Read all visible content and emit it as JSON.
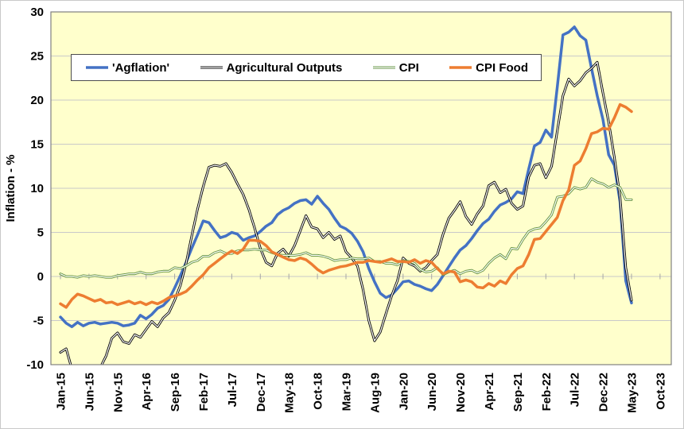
{
  "chart_data": {
    "type": "line",
    "title": "",
    "ylabel": "Inflation - %",
    "ylim": [
      -10,
      30
    ],
    "ytick_step": 5,
    "ytick_labels": [
      "30",
      "25",
      "20",
      "15",
      "10",
      "5",
      "0",
      "-5",
      "-10"
    ],
    "grid": true,
    "legend_position": "top",
    "plot_bg": "#FFFFCC",
    "grid_color": "#C9C9C9",
    "border_color": "#808080",
    "tick_color": "#A6A6A6",
    "x_start": "Jan-15",
    "x_frequency": "monthly",
    "x_tick_every_months": 5,
    "x_tick_labels": [
      "Jan-15",
      "Jun-15",
      "Nov-15",
      "Apr-16",
      "Sep-16",
      "Feb-17",
      "Jul-17",
      "Dec-17",
      "May-18",
      "Oct-18",
      "Mar-19",
      "Aug-19",
      "Jan-20",
      "Jun-20",
      "Nov-20",
      "Apr-21",
      "Sep-21",
      "Feb-22",
      "Jul-22",
      "Dec-22",
      "May-23",
      "Oct-23"
    ],
    "series": [
      {
        "name": "'Agflation'",
        "color": "#4472C4",
        "style": "solid",
        "values": [
          -4.6,
          -5.3,
          -5.7,
          -5.2,
          -5.6,
          -5.3,
          -5.2,
          -5.4,
          -5.3,
          -5.2,
          -5.3,
          -5.6,
          -5.5,
          -5.3,
          -4.4,
          -4.8,
          -4.3,
          -3.6,
          -3.3,
          -2.6,
          -1.3,
          0.1,
          1.6,
          3.2,
          4.7,
          6.3,
          6.1,
          5.2,
          4.4,
          4.6,
          5.0,
          4.8,
          4.1,
          4.4,
          4.6,
          5.1,
          5.7,
          6.1,
          7.0,
          7.5,
          7.8,
          8.3,
          8.6,
          8.7,
          8.2,
          9.1,
          8.3,
          7.6,
          6.6,
          5.7,
          5.4,
          4.9,
          4.0,
          2.8,
          0.9,
          -0.6,
          -1.9,
          -2.4,
          -2.1,
          -1.4,
          -0.6,
          -0.5,
          -0.9,
          -1.1,
          -1.4,
          -1.6,
          -0.9,
          0.1,
          1.1,
          2.1,
          3.0,
          3.5,
          4.3,
          5.2,
          6.0,
          6.5,
          7.4,
          8.1,
          8.4,
          8.8,
          9.6,
          9.4,
          12.2,
          14.8,
          15.2,
          16.6,
          15.8,
          21.5,
          27.4,
          27.7,
          28.3,
          27.3,
          26.8,
          23.6,
          20.5,
          17.8,
          13.8,
          12.6,
          8.5,
          -0.5,
          -3.0
        ]
      },
      {
        "name": "Agricultural Outputs",
        "color": "#000000",
        "style": "double",
        "values": [
          -8.6,
          -8.2,
          -10.5,
          -11.2,
          -11.6,
          -11.2,
          -10.8,
          -10.3,
          -9.0,
          -7.0,
          -6.4,
          -7.4,
          -7.6,
          -6.6,
          -6.9,
          -6.0,
          -5.1,
          -5.7,
          -4.7,
          -4.1,
          -2.7,
          -1.0,
          1.5,
          4.6,
          7.6,
          10.2,
          12.4,
          12.6,
          12.5,
          12.8,
          11.8,
          10.5,
          9.3,
          7.6,
          5.5,
          3.2,
          1.6,
          1.2,
          2.6,
          3.1,
          2.3,
          3.5,
          5.2,
          6.9,
          5.6,
          5.4,
          4.4,
          5.0,
          4.2,
          4.6,
          2.8,
          2.1,
          1.2,
          -1.5,
          -5.0,
          -7.3,
          -6.3,
          -4.2,
          -2.2,
          -0.5,
          2.1,
          1.5,
          1.2,
          0.6,
          1.0,
          1.8,
          2.5,
          4.8,
          6.6,
          7.5,
          8.5,
          6.8,
          5.9,
          7.1,
          8.0,
          10.3,
          10.7,
          9.5,
          9.9,
          8.3,
          7.6,
          8.0,
          11.3,
          12.6,
          12.8,
          11.2,
          12.5,
          16.5,
          20.5,
          22.4,
          21.6,
          22.2,
          23.1,
          23.6,
          24.3,
          20.8,
          17.5,
          13.5,
          9.0,
          1.0,
          -2.7
        ]
      },
      {
        "name": "CPI",
        "color": "#5E8F3B",
        "style": "double",
        "values": [
          0.3,
          0.0,
          0.0,
          -0.1,
          0.1,
          0.0,
          0.1,
          0.0,
          -0.1,
          -0.1,
          0.1,
          0.2,
          0.3,
          0.3,
          0.5,
          0.3,
          0.3,
          0.5,
          0.6,
          0.6,
          1.0,
          0.9,
          1.2,
          1.6,
          1.8,
          2.3,
          2.3,
          2.7,
          2.9,
          2.6,
          2.6,
          2.9,
          3.0,
          3.0,
          3.1,
          3.0,
          3.0,
          2.7,
          2.5,
          2.4,
          2.4,
          2.4,
          2.5,
          2.7,
          2.4,
          2.4,
          2.3,
          2.1,
          1.8,
          1.9,
          1.9,
          2.1,
          2.0,
          2.0,
          2.1,
          1.7,
          1.7,
          1.5,
          1.5,
          1.3,
          1.8,
          1.7,
          1.5,
          0.8,
          0.5,
          0.6,
          1.0,
          0.2,
          0.5,
          0.7,
          0.3,
          0.6,
          0.7,
          0.4,
          0.7,
          1.5,
          2.1,
          2.5,
          2.0,
          3.2,
          3.1,
          4.2,
          5.1,
          5.4,
          5.5,
          6.2,
          7.0,
          9.0,
          9.1,
          9.4,
          10.1,
          9.9,
          10.1,
          11.1,
          10.7,
          10.5,
          10.1,
          10.4,
          10.1,
          8.7,
          8.7
        ]
      },
      {
        "name": "CPI Food",
        "color": "#ED7D31",
        "style": "solid",
        "values": [
          -3.1,
          -3.5,
          -2.6,
          -2.0,
          -2.2,
          -2.5,
          -2.8,
          -2.6,
          -3.0,
          -2.9,
          -3.2,
          -3.0,
          -2.8,
          -3.1,
          -2.9,
          -3.2,
          -2.9,
          -3.1,
          -2.8,
          -2.4,
          -2.2,
          -2.0,
          -1.7,
          -1.1,
          -0.4,
          0.2,
          1.0,
          1.5,
          2.0,
          2.5,
          2.9,
          2.6,
          3.1,
          4.1,
          4.1,
          4.0,
          3.5,
          2.8,
          2.5,
          2.2,
          1.9,
          1.8,
          2.1,
          1.9,
          1.4,
          0.8,
          0.4,
          0.7,
          0.9,
          1.1,
          1.2,
          1.4,
          1.6,
          1.6,
          1.8,
          1.7,
          1.6,
          1.8,
          2.0,
          1.7,
          1.7,
          1.6,
          1.9,
          1.5,
          1.8,
          1.6,
          0.9,
          0.3,
          0.6,
          0.5,
          -0.6,
          -0.4,
          -0.6,
          -1.2,
          -1.3,
          -0.8,
          -1.1,
          -0.5,
          -0.8,
          0.2,
          0.9,
          1.2,
          2.5,
          4.2,
          4.3,
          5.1,
          5.9,
          6.7,
          8.6,
          9.8,
          12.6,
          13.1,
          14.5,
          16.2,
          16.4,
          16.8,
          16.7,
          18.0,
          19.5,
          19.2,
          18.7
        ]
      }
    ]
  }
}
